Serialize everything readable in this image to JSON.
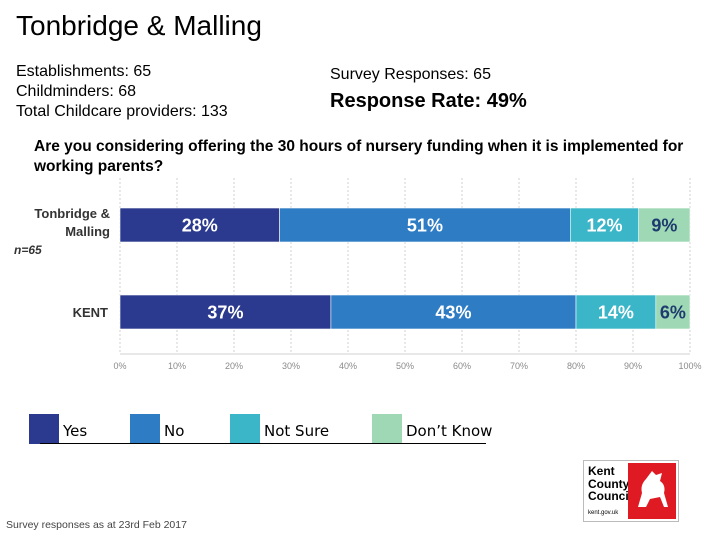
{
  "header": {
    "title": "Tonbridge & Malling",
    "establishments": "Establishments: 65",
    "childminders": "Childminders: 68",
    "total_providers": "Total Childcare providers: 133",
    "survey_responses": "Survey Responses: 65",
    "response_rate": "Response Rate: 49%"
  },
  "question": "Are you considering offering the 30 hours of nursery funding when it is implemented for working parents?",
  "chart_data": {
    "type": "bar",
    "orientation": "horizontal",
    "stacked": true,
    "categories": [
      "Tonbridge & Malling",
      "KENT"
    ],
    "category_sublabels": [
      "n=65",
      ""
    ],
    "series": [
      {
        "name": "Yes",
        "color": "#2b3a8f",
        "values": [
          28,
          37
        ],
        "labels": [
          "28%",
          "37%"
        ]
      },
      {
        "name": "No",
        "color": "#2e7dc4",
        "values": [
          51,
          43
        ],
        "labels": [
          "51%",
          "43%"
        ]
      },
      {
        "name": "Not Sure",
        "color": "#3bb5c8",
        "values": [
          12,
          14
        ],
        "labels": [
          "12%",
          "14%"
        ]
      },
      {
        "name": "Don't Know",
        "color": "#9fd8b4",
        "values": [
          9,
          6
        ],
        "labels": [
          "9%",
          "6%"
        ]
      }
    ],
    "xlim": [
      0,
      100
    ],
    "x_ticks": [
      "0%",
      "10%",
      "20%",
      "30%",
      "40%",
      "50%",
      "60%",
      "70%",
      "80%",
      "90%",
      "100%"
    ],
    "grid": true,
    "legend": "bottom"
  },
  "legend": {
    "items": [
      {
        "label": "Yes",
        "color": "#2b3a8f"
      },
      {
        "label": "No",
        "color": "#2e7dc4"
      },
      {
        "label": "Not Sure",
        "color": "#3bb5c8"
      },
      {
        "label": "Don’t Know",
        "color": "#9fd8b4"
      }
    ]
  },
  "footnote": "Survey responses as at 23rd Feb 2017",
  "logo": {
    "line1": "Kent",
    "line2": "County",
    "line3": "Council",
    "url": "kent.gov.uk"
  }
}
